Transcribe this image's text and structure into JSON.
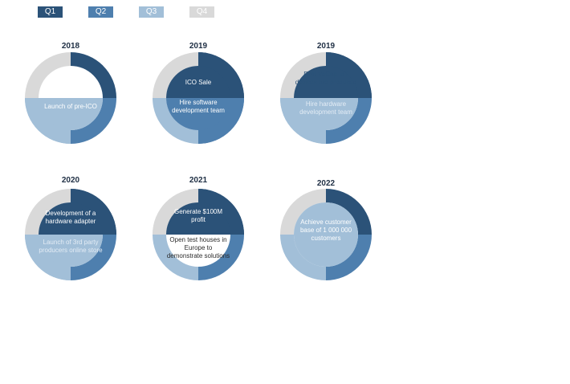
{
  "legend": [
    {
      "label": "Q1",
      "color": "#2b5278"
    },
    {
      "label": "Q2",
      "color": "#4e7fae"
    },
    {
      "label": "Q3",
      "color": "#a2bfd8"
    },
    {
      "label": "Q4",
      "color": "#d9d9d9"
    }
  ],
  "quarter_colors": {
    "q1": "#2b5278",
    "q2": "#4e7fae",
    "q3": "#a2bfd8",
    "q4": "#d9d9d9"
  },
  "years": [
    "2018",
    "2019",
    "2019",
    "2020",
    "2021",
    "2022"
  ],
  "milestones": {
    "m2018_q3": "Launch of pre-ICO",
    "m2019a_q1": "ICO Sale",
    "m2019a_q2": "Hire software development team",
    "m2019b_q1": "First VeCap IoT devices are produced",
    "m2019b_q3": "Hire hardware development team",
    "m2020_q1": "Development of a hardware adapter",
    "m2020_q3": "Launch of 3rd party producers online store",
    "m2021_q1": "Generate $100M profit",
    "m2021_q4": "Open test houses in Europe to demonstrate solutions",
    "m2022_q3": "Achieve customer base of 1 000 000 customers"
  }
}
